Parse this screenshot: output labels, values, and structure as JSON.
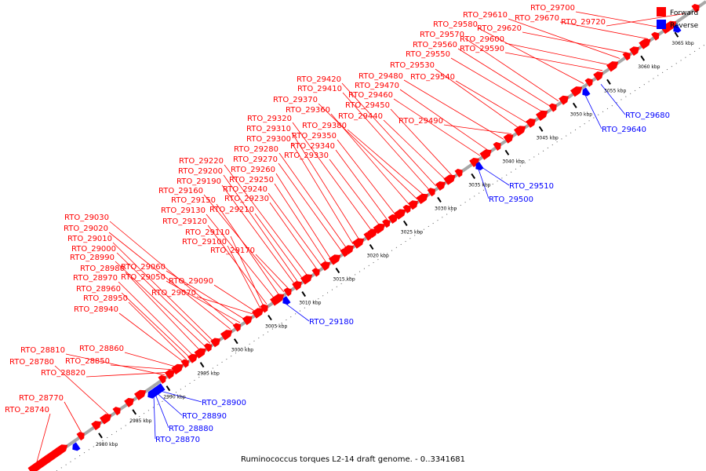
{
  "caption": "Ruminococcus torques L2-14 draft genome. - 0..3341681",
  "legend": {
    "forward": {
      "label": "Forward",
      "color": "#ff0000"
    },
    "reverse": {
      "label": "Reverse",
      "color": "#0000ff"
    }
  },
  "axis": {
    "color": "#a8a8a8",
    "tick_labels": [
      "2980 kbp",
      "2985 kbp",
      "2990 kbp",
      "2995 kbp",
      "3000 kbp",
      "3005 kbp",
      "3010 kbp",
      "3015 kbp",
      "3020 kbp",
      "3025 kbp",
      "3030 kbp",
      "3035 kbp",
      "3040 kbp",
      "3045 kbp",
      "3050 kbp",
      "3055 kbp",
      "3060 kbp",
      "3065 kbp"
    ]
  },
  "forward_labels": [
    "RTO_28740",
    "RTO_28770",
    "RTO_28780",
    "RTO_28810",
    "RTO_28820",
    "RTO_28850",
    "RTO_28860",
    "RTO_28940",
    "RTO_28950",
    "RTO_28960",
    "RTO_28970",
    "RTO_28980",
    "RTO_28990",
    "RTO_29000",
    "RTO_29010",
    "RTO_29020",
    "RTO_29030",
    "RTO_29050",
    "RTO_29060",
    "RTO_29070",
    "RTO_29090",
    "RTO_29100",
    "RTO_29110",
    "RTO_29120",
    "RTO_29130",
    "RTO_29150",
    "RTO_29160",
    "RTO_29170",
    "RTO_29190",
    "RTO_29200",
    "RTO_29210",
    "RTO_29220",
    "RTO_29230",
    "RTO_29240",
    "RTO_29250",
    "RTO_29260",
    "RTO_29270",
    "RTO_29280",
    "RTO_29300",
    "RTO_29310",
    "RTO_29320",
    "RTO_29330",
    "RTO_29340",
    "RTO_29350",
    "RTO_29360",
    "RTO_29370",
    "RTO_29380",
    "RTO_29410",
    "RTO_29420",
    "RTO_29440",
    "RTO_29450",
    "RTO_29460",
    "RTO_29470",
    "RTO_29480",
    "RTO_29490",
    "RTO_29530",
    "RTO_29540",
    "RTO_29550",
    "RTO_29560",
    "RTO_29570",
    "RTO_29580",
    "RTO_29590",
    "RTO_29600",
    "RTO_29610",
    "RTO_29620",
    "RTO_29670",
    "RTO_29700",
    "RTO_29720"
  ],
  "reverse_labels": [
    "RTO_28870",
    "RTO_28880",
    "RTO_28890",
    "RTO_28900",
    "RTO_29180",
    "RTO_29500",
    "RTO_29510",
    "RTO_29640",
    "RTO_29680"
  ]
}
